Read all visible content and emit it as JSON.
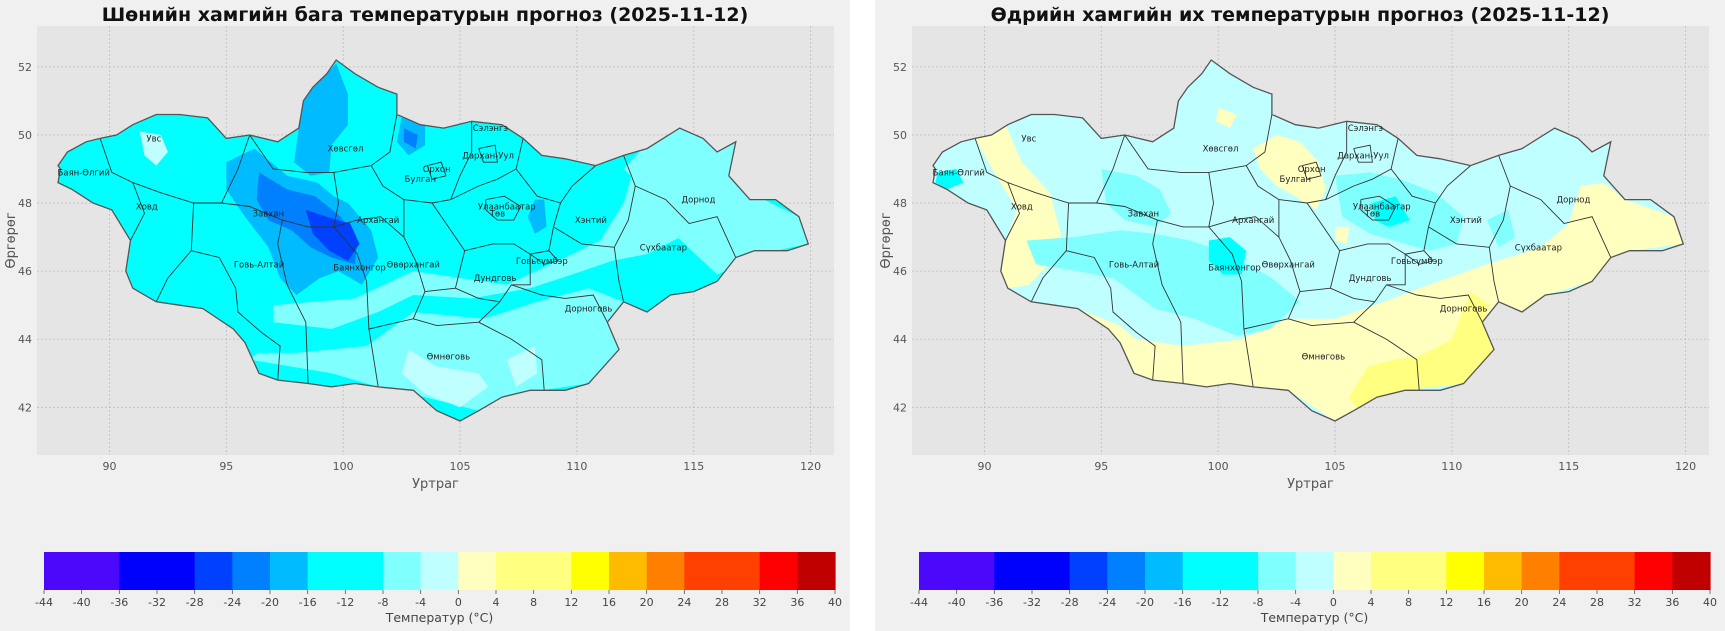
{
  "panels": [
    {
      "id": "min",
      "title": "Шөнийн хамгийн бага температурын прогноз (2025-11-12)",
      "xlabel": "Уртраг",
      "ylabel": "Өргөрөг",
      "colorbar_label": "Температур (°C)"
    },
    {
      "id": "max",
      "title": "Өдрийн хамгийн их температурын прогноз (2025-11-12)",
      "xlabel": "Уртраг",
      "ylabel": "Өргөрөг",
      "colorbar_label": "Температур (°C)"
    }
  ],
  "x_ticks": [
    "90",
    "95",
    "100",
    "105",
    "110",
    "115",
    "120"
  ],
  "y_ticks": [
    "52",
    "50",
    "48",
    "46",
    "44",
    "42"
  ],
  "x_tick_values": [
    90,
    95,
    100,
    105,
    110,
    115,
    120
  ],
  "y_tick_values": [
    52,
    50,
    48,
    46,
    44,
    42
  ],
  "lon_range": [
    86.9,
    121.0
  ],
  "lat_range": [
    40.6,
    53.2
  ],
  "colorbar": {
    "levels": [
      -44,
      -40,
      -36,
      -32,
      -28,
      -24,
      -20,
      -16,
      -12,
      -8,
      -4,
      0,
      4,
      8,
      12,
      16,
      20,
      24,
      28,
      32,
      36,
      40
    ],
    "tick_labels": [
      "-44",
      "-40",
      "-36",
      "-32",
      "-28",
      "-24",
      "-20",
      "-16",
      "-12",
      "-8",
      "-4",
      "0",
      "4",
      "8",
      "12",
      "16",
      "20",
      "24",
      "28",
      "32",
      "36",
      "40"
    ],
    "colors": [
      "#4b08fb",
      "#4b08fb",
      "#0000fd",
      "#0000fd",
      "#0040ff",
      "#0080ff",
      "#00bbff",
      "#00ffff",
      "#00ffff",
      "#80ffff",
      "#c0ffff",
      "#ffffc0",
      "#ffff80",
      "#ffff80",
      "#ffff00",
      "#ffbb00",
      "#ff8000",
      "#ff4000",
      "#ff4000",
      "#ff0000",
      "#c00000"
    ]
  },
  "provinces": [
    {
      "name": "Увс",
      "lon": 91.9,
      "lat": 49.9
    },
    {
      "name": "Баян-Өлгий",
      "lon": 88.9,
      "lat": 48.9
    },
    {
      "name": "Ховд",
      "lon": 91.6,
      "lat": 47.9
    },
    {
      "name": "Завхан",
      "lon": 96.8,
      "lat": 47.7
    },
    {
      "name": "Хөвсгөл",
      "lon": 100.1,
      "lat": 49.6
    },
    {
      "name": "Говь-Алтай",
      "lon": 96.4,
      "lat": 46.2
    },
    {
      "name": "Архангай",
      "lon": 101.5,
      "lat": 47.5
    },
    {
      "name": "Баянхонгор",
      "lon": 100.7,
      "lat": 46.1
    },
    {
      "name": "Булган",
      "lon": 103.3,
      "lat": 48.7
    },
    {
      "name": "Орхон",
      "lon": 104.0,
      "lat": 49.0
    },
    {
      "name": "Сэлэнгэ",
      "lon": 106.3,
      "lat": 50.2
    },
    {
      "name": "Дархан-Уул",
      "lon": 106.2,
      "lat": 49.4
    },
    {
      "name": "Өвөрхангай",
      "lon": 103.0,
      "lat": 46.2
    },
    {
      "name": "Улаанбаатар",
      "lon": 107.0,
      "lat": 47.9
    },
    {
      "name": "Төв",
      "lon": 106.6,
      "lat": 47.7
    },
    {
      "name": "Дундговь",
      "lon": 106.5,
      "lat": 45.8
    },
    {
      "name": "Говьсүмбэр",
      "lon": 108.5,
      "lat": 46.3
    },
    {
      "name": "Өмнөговь",
      "lon": 104.5,
      "lat": 43.5
    },
    {
      "name": "Дорноговь",
      "lon": 110.5,
      "lat": 44.9
    },
    {
      "name": "Хэнтий",
      "lon": 110.6,
      "lat": 47.5
    },
    {
      "name": "Сүхбаатар",
      "lon": 113.7,
      "lat": 46.7
    },
    {
      "name": "Дорнод",
      "lon": 115.2,
      "lat": 48.1
    }
  ],
  "field_colors": {
    "min": {
      "base": "#00ffff",
      "south": "#80ffff",
      "east": "#80ffff",
      "patch_light": "#c0ffff",
      "cold1": "#00bbff",
      "cold2": "#0080ff",
      "cold3": "#0040ff"
    },
    "max": {
      "base": "#c0ffff",
      "band": "#80ffff",
      "warm": "#ffffc0",
      "warm2": "#ffff80",
      "cool": "#00ffff"
    }
  }
}
